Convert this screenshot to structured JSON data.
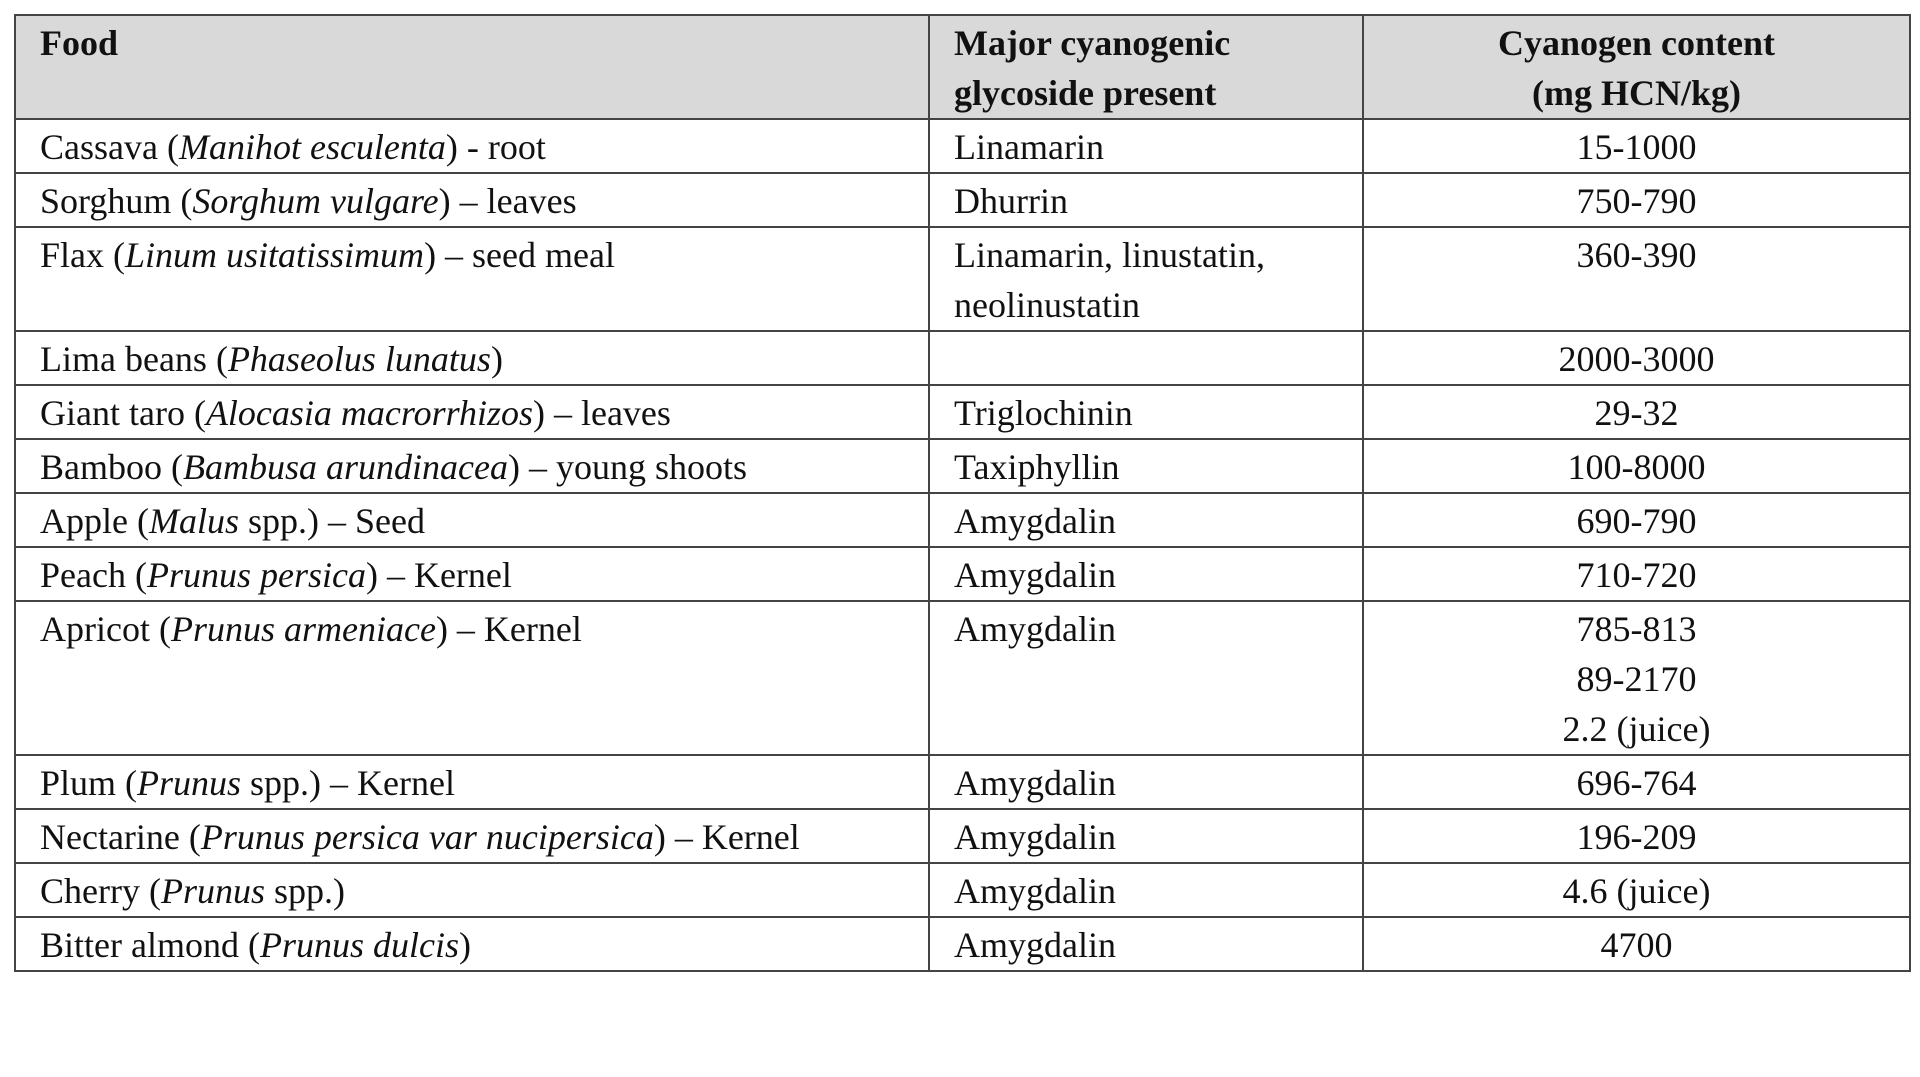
{
  "headers": {
    "food": "Food",
    "glycoside_line1": "Major cyanogenic",
    "glycoside_line2": "glycoside present",
    "content_line1": "Cyanogen content",
    "content_line2": "(mg HCN/kg)"
  },
  "rows": [
    {
      "food": {
        "pre": "Cassava (",
        "italic": "Manihot esculenta",
        "post": ") - root"
      },
      "glycoside": "Linamarin",
      "content": [
        "15-1000"
      ]
    },
    {
      "food": {
        "pre": "Sorghum (",
        "italic": "Sorghum vulgare",
        "post": ") – leaves"
      },
      "glycoside": "Dhurrin",
      "content": [
        "750-790"
      ]
    },
    {
      "food": {
        "pre": "Flax (",
        "italic": "Linum usitatissimum",
        "post": ") – seed meal"
      },
      "glycoside": "Linamarin, linustatin, neolinustatin",
      "content": [
        "360-390"
      ]
    },
    {
      "food": {
        "pre": "Lima beans (",
        "italic": "Phaseolus lunatus",
        "post": ")"
      },
      "glycoside": "",
      "content": [
        "2000-3000"
      ]
    },
    {
      "food": {
        "pre": "Giant taro (",
        "italic": "Alocasia macrorrhizos",
        "post": ") – leaves"
      },
      "glycoside": "Triglochinin",
      "content": [
        "29-32"
      ]
    },
    {
      "food": {
        "pre": "Bamboo (",
        "italic": "Bambusa arundinacea",
        "post": ") – young shoots"
      },
      "glycoside": "Taxiphyllin",
      "content": [
        "100-8000"
      ]
    },
    {
      "food": {
        "pre": "Apple (",
        "italic": "Malus",
        "post": " spp.) – Seed"
      },
      "glycoside": "Amygdalin",
      "content": [
        "690-790"
      ]
    },
    {
      "food": {
        "pre": "Peach (",
        "italic": "Prunus persica",
        "post": ") – Kernel"
      },
      "glycoside": "Amygdalin",
      "content": [
        "710-720"
      ]
    },
    {
      "food": {
        "pre": "Apricot (",
        "italic": "Prunus armeniace",
        "post": ") – Kernel"
      },
      "glycoside": "Amygdalin",
      "content": [
        "785-813",
        "89-2170",
        "2.2 (juice)"
      ]
    },
    {
      "food": {
        "pre": "Plum (",
        "italic": "Prunus",
        "post": " spp.) – Kernel"
      },
      "glycoside": "Amygdalin",
      "content": [
        "696-764"
      ]
    },
    {
      "food": {
        "pre": "Nectarine (",
        "italic": "Prunus persica var nucipersica",
        "post": ") – Kernel"
      },
      "glycoside": "Amygdalin",
      "content": [
        "196-209"
      ]
    },
    {
      "food": {
        "pre": "Cherry (",
        "italic": "Prunus",
        "post": " spp.)"
      },
      "glycoside": "Amygdalin",
      "content": [
        "4.6 (juice)"
      ]
    },
    {
      "food": {
        "pre": "Bitter almond (",
        "italic": "Prunus dulcis",
        "post": ")"
      },
      "glycoside": "Amygdalin",
      "content": [
        "4700"
      ]
    }
  ]
}
